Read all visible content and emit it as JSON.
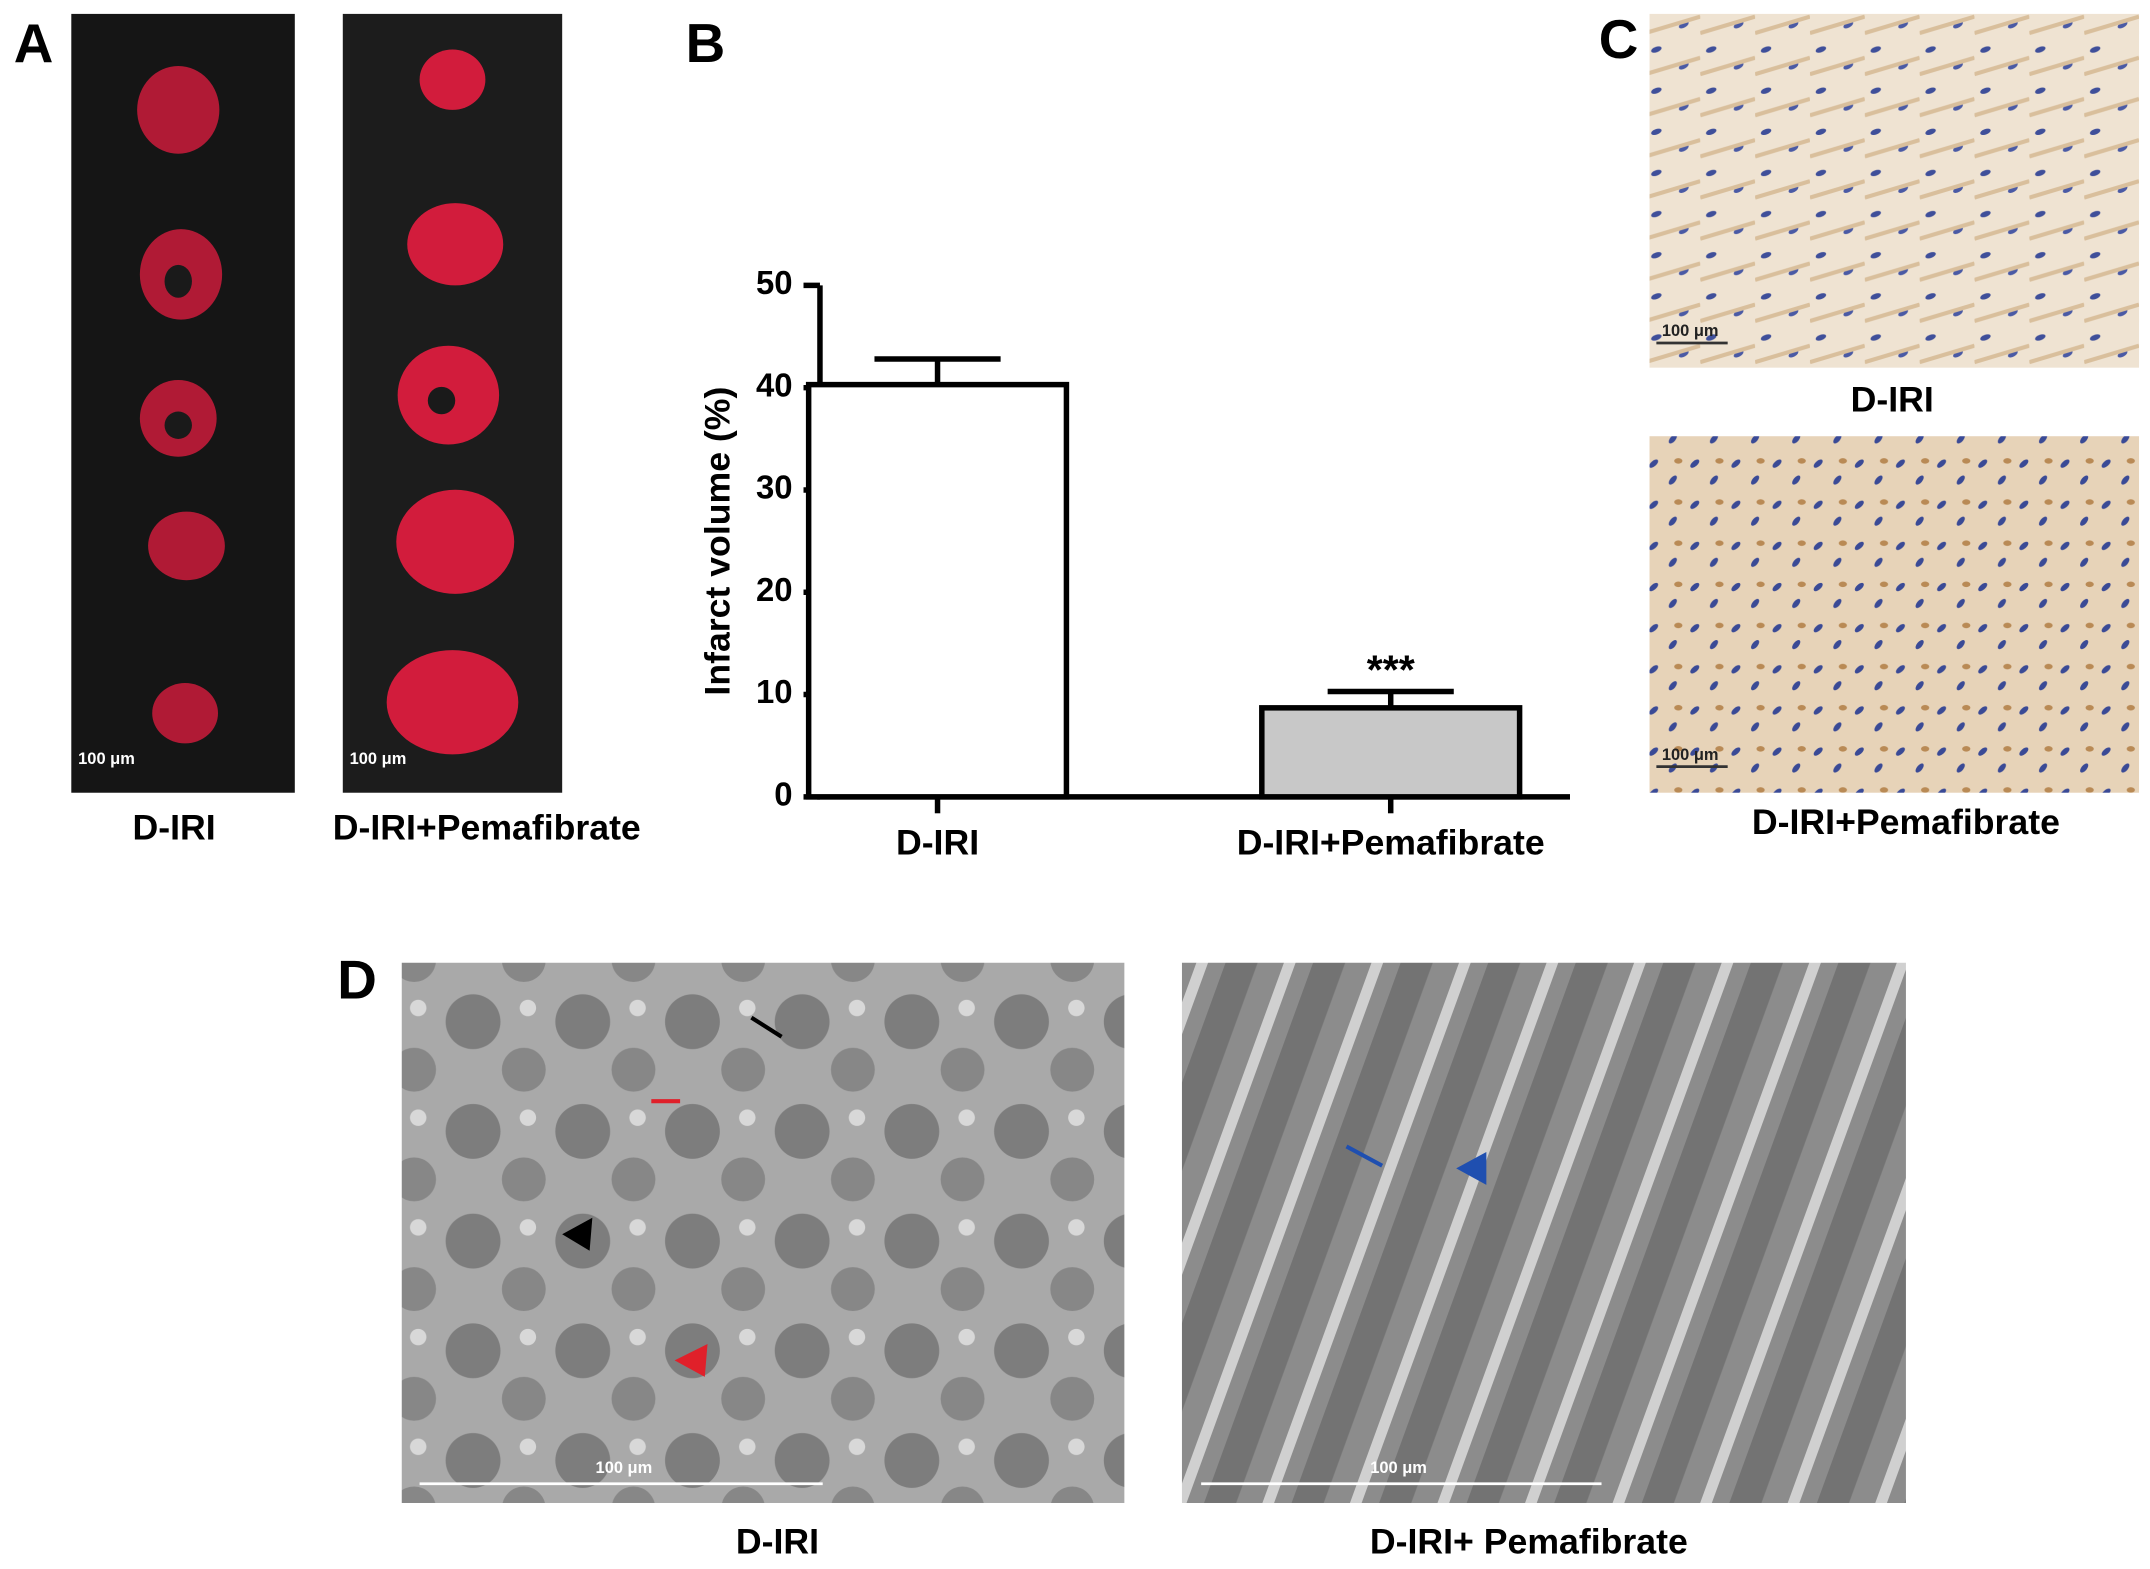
{
  "panels": {
    "a": {
      "label": "A",
      "scale_bars": [
        "100 μm",
        "100 μm"
      ],
      "captions": [
        "D-IRI",
        "D-IRI+Pemafibrate"
      ]
    },
    "b": {
      "label": "B"
    },
    "c": {
      "label": "C",
      "scale_bars": [
        "100 μm",
        "100 μm"
      ],
      "captions": [
        "D-IRI",
        "D-IRI+Pemafibrate"
      ]
    },
    "d": {
      "label": "D",
      "scale_bars": [
        "100 μm",
        "100 μm"
      ],
      "captions": [
        "D-IRI",
        "D-IRI+ Pemafibrate"
      ]
    }
  },
  "chart_data": {
    "type": "bar",
    "ylabel": "Infarct volume (%)",
    "categories": [
      "D-IRI",
      "D-IRI+Pemafibrate"
    ],
    "values": [
      40.3,
      8.7
    ],
    "errors": [
      2.5,
      1.6
    ],
    "colors": [
      "#ffffff",
      "#c8c8c8"
    ],
    "annotation": "***",
    "ylim": [
      0,
      50
    ],
    "yticks": [
      0,
      10,
      20,
      30,
      40,
      50
    ],
    "grid": false
  }
}
